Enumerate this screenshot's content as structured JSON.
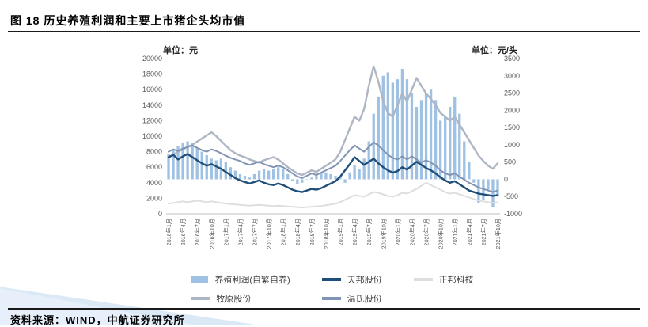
{
  "page": {
    "figure_title": "图 18 历史养殖利润和主要上市猪企头均市值",
    "source_text": "资料来源：WIND，中航证券研究所"
  },
  "chart_data": {
    "type": "bar+line combo",
    "title": "历史养殖利润和主要上市猪企头均市值",
    "x_tick_every": 3,
    "grid": false,
    "legend_position": "bottom",
    "left_axis": {
      "unit": "单位：元",
      "min": 0,
      "max": 20000,
      "step": 2000
    },
    "right_axis": {
      "unit": "单位：元/头",
      "min": -1000,
      "max": 3500,
      "step": 500
    },
    "x": [
      "2016年1月",
      "2016年2月",
      "2016年3月",
      "2016年4月",
      "2016年5月",
      "2016年6月",
      "2016年7月",
      "2016年8月",
      "2016年9月",
      "2016年10月",
      "2016年11月",
      "2016年12月",
      "2017年1月",
      "2017年2月",
      "2017年3月",
      "2017年4月",
      "2017年5月",
      "2017年6月",
      "2017年7月",
      "2017年8月",
      "2017年9月",
      "2017年10月",
      "2017年11月",
      "2017年12月",
      "2018年1月",
      "2018年2月",
      "2018年3月",
      "2018年4月",
      "2018年5月",
      "2018年6月",
      "2018年7月",
      "2018年8月",
      "2018年9月",
      "2018年10月",
      "2018年11月",
      "2018年12月",
      "2019年1月",
      "2019年2月",
      "2019年3月",
      "2019年4月",
      "2019年5月",
      "2019年6月",
      "2019年7月",
      "2019年8月",
      "2019年9月",
      "2019年10月",
      "2019年11月",
      "2019年12月",
      "2020年1月",
      "2020年2月",
      "2020年3月",
      "2020年4月",
      "2020年5月",
      "2020年6月",
      "2020年7月",
      "2020年8月",
      "2020年9月",
      "2020年10月",
      "2020年11月",
      "2020年12月",
      "2021年1月",
      "2021年2月",
      "2021年3月",
      "2021年4月",
      "2021年5月",
      "2021年6月",
      "2021年7月",
      "2021年8月",
      "2021年9月",
      "2021年10月"
    ],
    "bar_series": {
      "name": "养殖利润(自繁自养)",
      "axis": "right",
      "color": "#9fc1e3",
      "values": [
        730,
        850,
        950,
        1050,
        1100,
        1050,
        900,
        800,
        700,
        600,
        550,
        600,
        500,
        350,
        250,
        150,
        100,
        50,
        150,
        250,
        300,
        250,
        300,
        350,
        300,
        150,
        -50,
        -150,
        -100,
        0,
        50,
        150,
        200,
        200,
        150,
        100,
        50,
        -100,
        200,
        400,
        300,
        600,
        1100,
        1900,
        2400,
        3000,
        3100,
        2800,
        2900,
        3200,
        2900,
        2500,
        2100,
        2300,
        2500,
        2600,
        2300,
        1700,
        1800,
        2100,
        2400,
        1900,
        1100,
        500,
        -100,
        -700,
        -600,
        -300,
        -800,
        -500
      ]
    },
    "line_series": [
      {
        "name": "牧原股份",
        "axis": "left",
        "color": "#aeb6c4",
        "width": 2.4,
        "values": [
          7200,
          7600,
          8000,
          8300,
          8600,
          8900,
          9300,
          9700,
          10100,
          10500,
          10000,
          9400,
          8800,
          8200,
          7800,
          7500,
          7300,
          7000,
          6800,
          6600,
          6900,
          7100,
          7300,
          7000,
          6500,
          6000,
          5600,
          5200,
          5000,
          5300,
          5600,
          5400,
          5800,
          6200,
          6600,
          7000,
          8000,
          9500,
          11000,
          12500,
          12000,
          13500,
          16500,
          19000,
          17000,
          14500,
          13000,
          12500,
          14000,
          15500,
          14500,
          16000,
          17500,
          16500,
          15500,
          14800,
          14000,
          13000,
          12500,
          12000,
          12500,
          11500,
          10500,
          9500,
          8500,
          7500,
          6800,
          6200,
          5800,
          6500
        ]
      },
      {
        "name": "温氏股份",
        "axis": "left",
        "color": "#8294b4",
        "width": 2,
        "values": [
          8000,
          8300,
          8100,
          8400,
          8600,
          8800,
          8500,
          8200,
          8000,
          8300,
          8100,
          7800,
          7500,
          7200,
          7000,
          6800,
          6500,
          6300,
          6500,
          6700,
          6400,
          6200,
          6000,
          6200,
          6000,
          5600,
          5200,
          4800,
          4600,
          4900,
          5200,
          5000,
          5300,
          5600,
          5900,
          6200,
          6800,
          7500,
          8200,
          8800,
          8400,
          8000,
          8600,
          9200,
          8800,
          8200,
          7600,
          7200,
          7000,
          7400,
          7000,
          7400,
          7000,
          6600,
          6900,
          6600,
          6200,
          5600,
          5200,
          5000,
          5200,
          4800,
          4400,
          4000,
          3700,
          3400,
          3200,
          3000,
          2800,
          3000
        ]
      },
      {
        "name": "正邦科技",
        "axis": "left",
        "color": "#dedede",
        "width": 2,
        "values": [
          1300,
          1400,
          1500,
          1600,
          1500,
          1600,
          1700,
          1600,
          1500,
          1600,
          1500,
          1400,
          1300,
          1250,
          1200,
          1150,
          1100,
          1050,
          1100,
          1150,
          1100,
          1050,
          1000,
          1050,
          1000,
          950,
          900,
          850,
          800,
          850,
          900,
          950,
          1000,
          1100,
          1200,
          1300,
          1500,
          1800,
          2100,
          2400,
          2300,
          2200,
          2500,
          2800,
          2700,
          2500,
          2300,
          2200,
          2400,
          2700,
          2600,
          2900,
          3200,
          3600,
          4000,
          3700,
          3400,
          3100,
          2800,
          2600,
          2700,
          2500,
          2300,
          2100,
          1900,
          1700,
          1600,
          1500,
          1400,
          1500
        ]
      },
      {
        "name": "天邦股份",
        "axis": "left",
        "color": "#1f4e79",
        "width": 2.4,
        "values": [
          7300,
          7600,
          7000,
          7400,
          7700,
          7300,
          6900,
          6500,
          6200,
          6400,
          6100,
          5800,
          5400,
          5000,
          4600,
          4300,
          4100,
          3900,
          4100,
          4300,
          4000,
          3800,
          3700,
          3900,
          3700,
          3400,
          3100,
          2900,
          2800,
          3000,
          3200,
          3100,
          3300,
          3600,
          3900,
          4200,
          4800,
          5600,
          6400,
          7300,
          6800,
          6300,
          6700,
          7100,
          6500,
          6000,
          5600,
          5300,
          5500,
          6000,
          5700,
          6200,
          6700,
          6300,
          5900,
          5600,
          5200,
          4700,
          4300,
          4000,
          4200,
          3800,
          3400,
          3000,
          2800,
          2600,
          2500,
          2400,
          2300,
          2400
        ]
      }
    ],
    "legend_items": [
      {
        "label": "养殖利润(自繁自养)",
        "type": "bar",
        "color": "#9fc1e3"
      },
      {
        "label": "天邦股份",
        "type": "line",
        "color": "#1f4e79"
      },
      {
        "label": "正邦科技",
        "type": "line",
        "color": "#dedede"
      },
      {
        "label": "牧原股份",
        "type": "line",
        "color": "#aeb6c4"
      },
      {
        "label": "温氏股份",
        "type": "line",
        "color": "#8294b4"
      }
    ]
  }
}
